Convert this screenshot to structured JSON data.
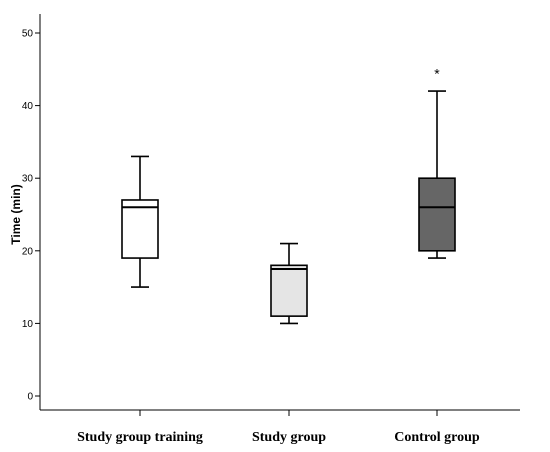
{
  "chart_data": {
    "type": "box",
    "ylabel": "Time (min)",
    "ylim": [
      0,
      50
    ],
    "yticks": [
      0,
      10,
      20,
      30,
      40,
      50
    ],
    "grid": false,
    "categories": [
      "Study group training",
      "Study group",
      "Control group"
    ],
    "boxes": [
      {
        "category": "Study group training",
        "min": 15,
        "q1": 19,
        "median": 26,
        "q3": 27,
        "max": 33,
        "fill": "#ffffff"
      },
      {
        "category": "Study group",
        "min": 10,
        "q1": 11,
        "median": 17.5,
        "q3": 18,
        "max": 21,
        "fill": "#e5e5e5"
      },
      {
        "category": "Control group",
        "min": 19,
        "q1": 20,
        "median": 26,
        "q3": 30,
        "max": 42,
        "fill": "#666666"
      }
    ],
    "annotations": [
      {
        "category": "Control group",
        "text": "*",
        "y": 45
      }
    ]
  }
}
